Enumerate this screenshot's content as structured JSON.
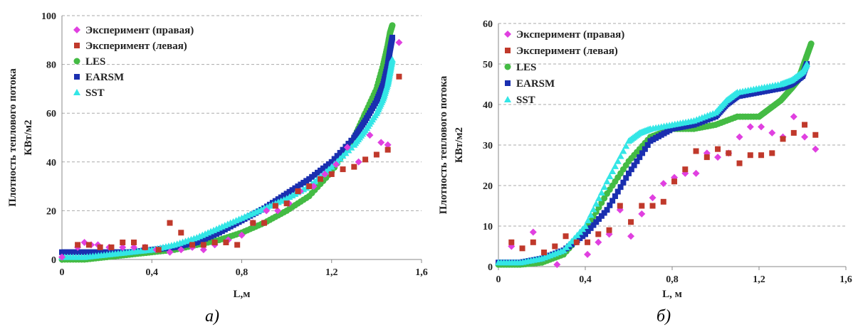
{
  "chart_data": [
    {
      "type": "scatter",
      "caption": "а)",
      "xlabel": "L,м",
      "ylabel_lines": [
        "Плотность теплового потока",
        "КВт/м2"
      ],
      "xlim": [
        0,
        1.6
      ],
      "ylim": [
        0,
        100
      ],
      "x_ticks": [
        "0",
        "0,4",
        "0,8",
        "1,2",
        "1,6"
      ],
      "y_ticks": [
        "0",
        "20",
        "40",
        "60",
        "80",
        "100"
      ],
      "grid": "horizontal dashed",
      "legend_position": "top-left",
      "series": [
        {
          "name": "Эксперимент (правая)",
          "color": "#e040e0",
          "marker": "diamond",
          "x": [
            0.0,
            0.07,
            0.1,
            0.13,
            0.16,
            0.21,
            0.27,
            0.32,
            0.37,
            0.42,
            0.48,
            0.53,
            0.58,
            0.63,
            0.68,
            0.74,
            0.8,
            0.85,
            0.91,
            0.96,
            1.01,
            1.06,
            1.12,
            1.17,
            1.22,
            1.27,
            1.32,
            1.37,
            1.42,
            1.45,
            1.5
          ],
          "y": [
            1,
            5,
            7,
            6,
            6,
            5,
            5,
            5,
            5,
            4,
            3,
            4,
            5,
            4,
            6,
            8,
            10,
            15,
            20,
            20,
            23,
            28,
            30,
            35,
            39,
            46,
            40,
            51,
            48,
            47,
            89
          ]
        },
        {
          "name": "Эксперимент (левая)",
          "color": "#c0392b",
          "marker": "square",
          "x": [
            0.07,
            0.12,
            0.17,
            0.22,
            0.27,
            0.32,
            0.37,
            0.43,
            0.48,
            0.53,
            0.58,
            0.63,
            0.68,
            0.73,
            0.78,
            0.85,
            0.9,
            0.95,
            1.0,
            1.05,
            1.1,
            1.15,
            1.2,
            1.25,
            1.3,
            1.35,
            1.4,
            1.45,
            1.5
          ],
          "y": [
            6,
            6,
            5,
            5,
            7,
            7,
            5,
            4,
            15,
            11,
            6,
            6,
            7,
            7,
            6,
            15,
            15,
            22,
            23,
            28,
            30,
            33,
            35,
            37,
            38,
            41,
            43,
            45,
            75
          ]
        },
        {
          "name": "LES",
          "color": "#44bb44",
          "marker": "circle",
          "x": [
            0.0,
            0.1,
            0.2,
            0.3,
            0.4,
            0.5,
            0.6,
            0.7,
            0.8,
            0.9,
            1.0,
            1.1,
            1.2,
            1.3,
            1.35,
            1.4,
            1.43,
            1.45,
            1.46,
            1.47
          ],
          "y": [
            0,
            0,
            1,
            2,
            3,
            4,
            6,
            8,
            11,
            15,
            20,
            26,
            36,
            50,
            60,
            70,
            80,
            88,
            93,
            96
          ]
        },
        {
          "name": "EARSM",
          "color": "#1a2fb0",
          "marker": "square",
          "x": [
            0.0,
            0.1,
            0.2,
            0.3,
            0.4,
            0.5,
            0.6,
            0.7,
            0.8,
            0.9,
            1.0,
            1.1,
            1.2,
            1.3,
            1.35,
            1.4,
            1.43,
            1.45,
            1.46,
            1.47
          ],
          "y": [
            3,
            3,
            3,
            3,
            4,
            5,
            7,
            11,
            16,
            21,
            27,
            33,
            40,
            50,
            57,
            65,
            72,
            80,
            86,
            91
          ]
        },
        {
          "name": "SST",
          "color": "#33e6e6",
          "marker": "triangle",
          "x": [
            0.0,
            0.1,
            0.2,
            0.3,
            0.4,
            0.5,
            0.6,
            0.7,
            0.8,
            0.9,
            1.0,
            1.1,
            1.2,
            1.3,
            1.35,
            1.4,
            1.43,
            1.45,
            1.46,
            1.47
          ],
          "y": [
            1,
            1,
            2,
            3,
            4,
            6,
            9,
            13,
            17,
            21,
            25,
            30,
            38,
            47,
            53,
            60,
            66,
            72,
            77,
            82
          ]
        }
      ]
    },
    {
      "type": "scatter",
      "caption": "б)",
      "xlabel": "L, м",
      "ylabel_lines": [
        "Плотность теплового потока",
        "КВт/м2"
      ],
      "xlim": [
        0,
        1.6
      ],
      "ylim": [
        0,
        60
      ],
      "x_ticks": [
        "0",
        "0,4",
        "0,8",
        "1,2",
        "1,6"
      ],
      "y_ticks": [
        "0",
        "10",
        "20",
        "30",
        "40",
        "50",
        "60"
      ],
      "grid": "horizontal dashed",
      "legend_position": "top-left",
      "series": [
        {
          "name": "Эксперимент (правая)",
          "color": "#e040e0",
          "marker": "diamond",
          "x": [
            0.06,
            0.16,
            0.27,
            0.41,
            0.46,
            0.51,
            0.56,
            0.61,
            0.66,
            0.71,
            0.76,
            0.81,
            0.86,
            0.91,
            0.96,
            1.01,
            1.06,
            1.11,
            1.16,
            1.21,
            1.26,
            1.31,
            1.36,
            1.41,
            1.46
          ],
          "y": [
            5,
            8.5,
            0.5,
            3,
            6,
            8,
            14,
            7.5,
            13,
            17,
            20.5,
            22,
            23,
            23,
            28,
            27,
            28,
            32,
            34.5,
            34.5,
            33,
            32,
            37,
            32,
            29
          ]
        },
        {
          "name": "Эксперимент (левая)",
          "color": "#c0392b",
          "marker": "square",
          "x": [
            0.06,
            0.11,
            0.16,
            0.21,
            0.26,
            0.31,
            0.36,
            0.41,
            0.46,
            0.51,
            0.56,
            0.61,
            0.66,
            0.71,
            0.76,
            0.81,
            0.86,
            0.91,
            0.96,
            1.01,
            1.06,
            1.11,
            1.16,
            1.21,
            1.26,
            1.31,
            1.36,
            1.41,
            1.46
          ],
          "y": [
            6,
            4.5,
            6,
            3.5,
            5,
            7.5,
            6,
            6,
            8,
            9,
            15,
            11,
            15,
            15,
            16,
            21,
            24,
            28.5,
            27,
            29,
            28,
            25.5,
            27.5,
            27.5,
            28,
            31.5,
            33,
            35,
            32.5
          ]
        },
        {
          "name": "LES",
          "color": "#44bb44",
          "marker": "circle",
          "x": [
            0.0,
            0.1,
            0.2,
            0.3,
            0.4,
            0.5,
            0.6,
            0.7,
            0.8,
            0.9,
            1.0,
            1.1,
            1.2,
            1.25,
            1.3,
            1.35,
            1.38,
            1.4,
            1.42,
            1.44
          ],
          "y": [
            0.5,
            0.5,
            1,
            3,
            9,
            18,
            26,
            32,
            34,
            34,
            35,
            37,
            37,
            39,
            41,
            44,
            46,
            49,
            52,
            55
          ]
        },
        {
          "name": "EARSM",
          "color": "#1a2fb0",
          "marker": "square",
          "x": [
            0.0,
            0.1,
            0.2,
            0.3,
            0.4,
            0.5,
            0.6,
            0.7,
            0.8,
            0.9,
            1.0,
            1.05,
            1.1,
            1.2,
            1.3,
            1.35,
            1.4,
            1.42
          ],
          "y": [
            1,
            1,
            2,
            4,
            8,
            14,
            23,
            31,
            34,
            35,
            37,
            40,
            42,
            43,
            44,
            45,
            47,
            50
          ]
        },
        {
          "name": "SST",
          "color": "#33e6e6",
          "marker": "triangle",
          "x": [
            0.0,
            0.1,
            0.2,
            0.3,
            0.4,
            0.5,
            0.6,
            0.65,
            0.7,
            0.8,
            0.9,
            1.0,
            1.05,
            1.1,
            1.2,
            1.3,
            1.35,
            1.4,
            1.42
          ],
          "y": [
            1,
            1,
            2,
            4,
            10,
            21,
            31,
            33,
            34,
            35,
            36,
            38,
            41,
            43,
            44,
            45,
            46,
            48,
            50
          ]
        }
      ]
    }
  ]
}
